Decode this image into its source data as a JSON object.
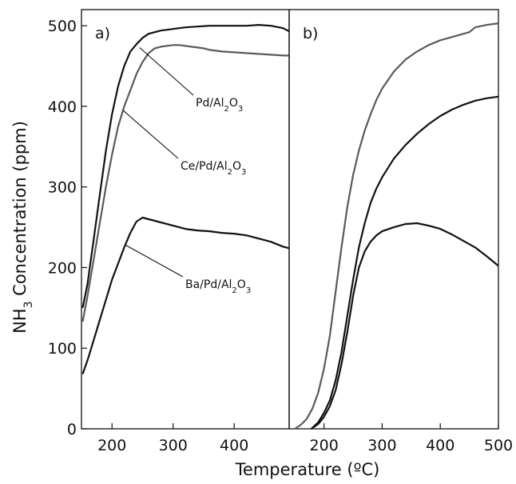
{
  "chart_data": {
    "type": "line",
    "y_axis": {
      "label": "NH3 Concentration (ppm)",
      "label_parts": {
        "pre": "NH",
        "sub": "3",
        "post": " Concentration (ppm)"
      },
      "range": [
        0,
        520
      ],
      "ticks": [
        0,
        100,
        200,
        300,
        400,
        500
      ]
    },
    "x_axis": {
      "label": "Temperature (ºC)"
    },
    "panels": [
      {
        "label": "a)",
        "x_range": [
          150,
          490
        ],
        "x_ticks": [
          200,
          300,
          400
        ],
        "series": [
          {
            "name": "Pd/Al2O3",
            "color": "#111111",
            "x": [
              152,
              160,
              170,
              180,
              190,
              200,
              210,
              220,
              230,
              240,
              250,
              260,
              270,
              280,
              290,
              300,
              320,
              340,
              360,
              380,
              400,
              420,
              440,
              460,
              480,
              490
            ],
            "y": [
              150,
              180,
              235,
              290,
              345,
              390,
              425,
              450,
              468,
              477,
              485,
              490,
              492,
              494,
              495,
              496,
              498,
              499,
              500,
              500,
              500,
              500,
              501,
              500,
              497,
              493
            ]
          },
          {
            "name": "Ce/Pd/Al2O3",
            "color": "#5a5a5a",
            "x": [
              152,
              160,
              170,
              180,
              190,
              200,
              210,
              220,
              230,
              240,
              250,
              260,
              270,
              280,
              290,
              300,
              310,
              320,
              330,
              340,
              350,
              360,
              380,
              400,
              420,
              440,
              460,
              480,
              490
            ],
            "y": [
              133,
              165,
              210,
              255,
              300,
              340,
              375,
              400,
              420,
              440,
              455,
              466,
              472,
              474,
              475,
              476,
              476,
              475,
              474,
              473,
              472,
              470,
              468,
              467,
              466,
              465,
              464,
              463,
              463
            ]
          },
          {
            "name": "Ba/Pd/Al2O3",
            "color": "#111111",
            "x": [
              152,
              160,
              170,
              180,
              190,
              200,
              210,
              220,
              230,
              240,
              250,
              260,
              270,
              280,
              300,
              320,
              340,
              360,
              380,
              400,
              420,
              440,
              460,
              480,
              490
            ],
            "y": [
              68,
              85,
              110,
              135,
              160,
              185,
              205,
              225,
              243,
              257,
              262,
              260,
              258,
              256,
              252,
              248,
              246,
              245,
              243,
              242,
              240,
              236,
              232,
              226,
              224
            ]
          }
        ],
        "annotations": [
          {
            "series": "Pd/Al2O3",
            "pre": "Pd/Al",
            "sub1": "2",
            "mid": "O",
            "sub2": "3",
            "point_x": 245,
            "point_y": 473
          },
          {
            "series": "Ce/Pd/Al2O3",
            "pre": "Ce/Pd/Al",
            "sub1": "2",
            "mid": "O",
            "sub2": "3",
            "point_x": 218,
            "point_y": 395
          },
          {
            "series": "Ba/Pd/Al2O3",
            "pre": "Ba/Pd/Al",
            "sub1": "2",
            "mid": "O",
            "sub2": "3",
            "point_x": 222,
            "point_y": 228
          }
        ]
      },
      {
        "label": "b)",
        "x_range": [
          140,
          500
        ],
        "x_ticks": [
          200,
          300,
          400,
          500
        ],
        "series": [
          {
            "name": "Pd/Al2O3",
            "color": "#5a5a5a",
            "x": [
              150,
              160,
              170,
              180,
              190,
              200,
              210,
              220,
              230,
              240,
              250,
              260,
              270,
              280,
              290,
              300,
              320,
              340,
              360,
              380,
              400,
              420,
              440,
              450,
              460,
              480,
              500
            ],
            "y": [
              0,
              5,
              12,
              25,
              45,
              75,
              115,
              170,
              225,
              275,
              315,
              345,
              370,
              390,
              408,
              422,
              443,
              458,
              468,
              476,
              482,
              486,
              490,
              492,
              498,
              501,
              503
            ]
          },
          {
            "name": "Ce/Pd/Al2O3",
            "color": "#111111",
            "x": [
              178,
              190,
              200,
              210,
              220,
              230,
              240,
              250,
              260,
              270,
              280,
              290,
              300,
              320,
              340,
              360,
              380,
              400,
              420,
              440,
              460,
              480,
              500
            ],
            "y": [
              0,
              8,
              20,
              35,
              60,
              95,
              140,
              185,
              225,
              255,
              280,
              298,
              312,
              335,
              352,
              366,
              378,
              388,
              396,
              402,
              407,
              410,
              412
            ]
          },
          {
            "name": "Ba/Pd/Al2O3",
            "color": "#111111",
            "x": [
              178,
              190,
              200,
              210,
              220,
              230,
              240,
              250,
              260,
              270,
              280,
              290,
              300,
              320,
              340,
              360,
              380,
              400,
              420,
              440,
              460,
              480,
              500
            ],
            "y": [
              0,
              6,
              15,
              28,
              48,
              80,
              120,
              165,
              200,
              220,
              232,
              240,
              245,
              250,
              254,
              255,
              252,
              248,
              241,
              233,
              225,
              214,
              202
            ]
          }
        ]
      }
    ]
  }
}
